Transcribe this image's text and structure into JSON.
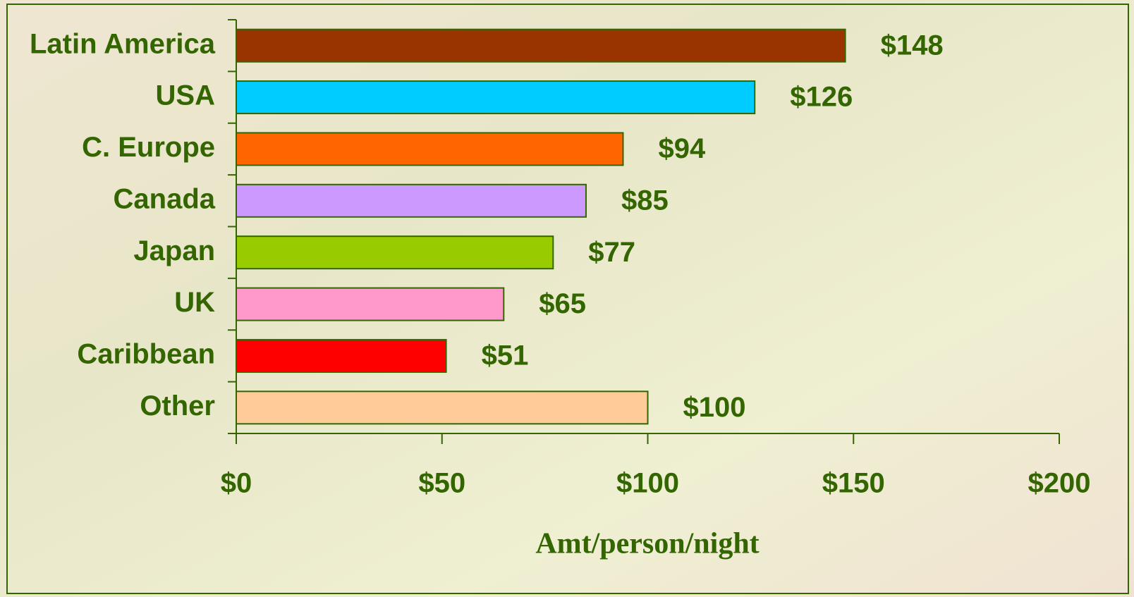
{
  "chart_data": {
    "type": "bar",
    "orientation": "horizontal",
    "categories": [
      "Latin America",
      "USA",
      "C. Europe",
      "Canada",
      "Japan",
      "UK",
      "Caribbean",
      "Other"
    ],
    "values": [
      148,
      126,
      94,
      85,
      77,
      65,
      51,
      100
    ],
    "value_labels": [
      "$148",
      "$126",
      "$94",
      "$85",
      "$77",
      "$65",
      "$51",
      "$100"
    ],
    "colors": [
      "#993300",
      "#00ccff",
      "#ff6600",
      "#cc99ff",
      "#99cc00",
      "#ff99cc",
      "#ff0000",
      "#ffcc99"
    ],
    "xlim": [
      0,
      200
    ],
    "xticks": [
      {
        "value": 0,
        "label": "$0"
      },
      {
        "value": 50,
        "label": "$50"
      },
      {
        "value": 100,
        "label": "$100"
      },
      {
        "value": 150,
        "label": "$150"
      },
      {
        "value": 200,
        "label": "$200"
      }
    ],
    "x_label": "Amt/person/night",
    "grid": false
  }
}
